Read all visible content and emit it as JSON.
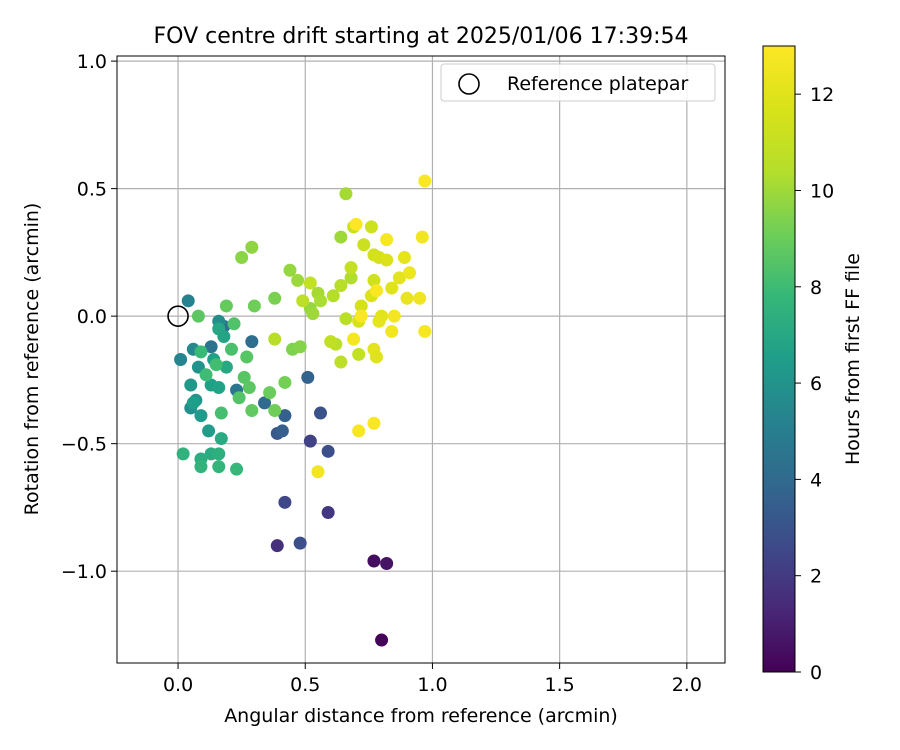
{
  "chart_data": {
    "type": "scatter",
    "title": "FOV centre drift starting at 2025/01/06 17:39:54",
    "xlabel": "Angular distance from reference (arcmin)",
    "ylabel": "Rotation from reference (arcmin)",
    "xlim": [
      -0.24,
      2.15
    ],
    "ylim": [
      -1.36,
      1.02
    ],
    "xticks": [
      0.0,
      0.5,
      1.0,
      1.5,
      2.0
    ],
    "xtick_labels": [
      "0.0",
      "0.5",
      "1.0",
      "1.5",
      "2.0"
    ],
    "yticks": [
      1.0,
      0.5,
      0.0,
      -0.5,
      -1.0
    ],
    "ytick_labels": [
      "1.0",
      "0.5",
      "0.0",
      "−0.5",
      "−1.0"
    ],
    "grid": true,
    "legend": {
      "placement": "top-right",
      "entries": [
        "Reference platepar"
      ]
    },
    "reference_point": {
      "x": 0.0,
      "y": 0.0
    },
    "colorbar": {
      "label": "Hours from first FF file",
      "range": [
        0,
        13
      ],
      "ticks": [
        0,
        2,
        4,
        6,
        8,
        10,
        12
      ],
      "tick_labels": [
        "0",
        "2",
        "4",
        "6",
        "8",
        "10",
        "12"
      ],
      "colormap": "viridis"
    },
    "points": [
      {
        "x": 0.8,
        "y": -1.27,
        "h": 0.1
      },
      {
        "x": 0.77,
        "y": -0.96,
        "h": 0.4
      },
      {
        "x": 0.82,
        "y": -0.97,
        "h": 0.6
      },
      {
        "x": 0.39,
        "y": -0.9,
        "h": 1.6
      },
      {
        "x": 0.48,
        "y": -0.89,
        "h": 2.8
      },
      {
        "x": 0.42,
        "y": -0.73,
        "h": 2.5
      },
      {
        "x": 0.59,
        "y": -0.77,
        "h": 1.9
      },
      {
        "x": 0.52,
        "y": -0.49,
        "h": 2.3
      },
      {
        "x": 0.59,
        "y": -0.53,
        "h": 2.8
      },
      {
        "x": 0.56,
        "y": -0.38,
        "h": 2.9
      },
      {
        "x": 0.39,
        "y": -0.46,
        "h": 3.2
      },
      {
        "x": 0.41,
        "y": -0.45,
        "h": 3.5
      },
      {
        "x": 0.42,
        "y": -0.39,
        "h": 3.6
      },
      {
        "x": 0.51,
        "y": -0.24,
        "h": 3.7
      },
      {
        "x": 0.34,
        "y": -0.34,
        "h": 4.0
      },
      {
        "x": 0.29,
        "y": -0.1,
        "h": 4.2
      },
      {
        "x": 0.23,
        "y": -0.29,
        "h": 4.6
      },
      {
        "x": 0.18,
        "y": -0.04,
        "h": 4.4
      },
      {
        "x": 0.13,
        "y": -0.12,
        "h": 4.5
      },
      {
        "x": 0.04,
        "y": 0.06,
        "h": 5.2
      },
      {
        "x": 0.01,
        "y": -0.17,
        "h": 5.3
      },
      {
        "x": 0.06,
        "y": -0.13,
        "h": 5.5
      },
      {
        "x": 0.16,
        "y": -0.02,
        "h": 5.7
      },
      {
        "x": 0.05,
        "y": -0.36,
        "h": 5.8
      },
      {
        "x": 0.05,
        "y": -0.27,
        "h": 6.2
      },
      {
        "x": 0.08,
        "y": -0.2,
        "h": 6.0
      },
      {
        "x": 0.07,
        "y": -0.33,
        "h": 6.1
      },
      {
        "x": 0.09,
        "y": -0.39,
        "h": 6.3
      },
      {
        "x": 0.06,
        "y": -0.34,
        "h": 6.5
      },
      {
        "x": 0.12,
        "y": -0.45,
        "h": 6.4
      },
      {
        "x": 0.13,
        "y": -0.27,
        "h": 6.6
      },
      {
        "x": 0.16,
        "y": -0.28,
        "h": 6.7
      },
      {
        "x": 0.14,
        "y": -0.17,
        "h": 6.6
      },
      {
        "x": 0.16,
        "y": -0.05,
        "h": 6.9
      },
      {
        "x": 0.18,
        "y": -0.08,
        "h": 6.8
      },
      {
        "x": 0.19,
        "y": -0.2,
        "h": 7.0
      },
      {
        "x": 0.17,
        "y": -0.48,
        "h": 7.1
      },
      {
        "x": 0.13,
        "y": -0.54,
        "h": 7.2
      },
      {
        "x": 0.09,
        "y": -0.56,
        "h": 7.3
      },
      {
        "x": 0.16,
        "y": -0.54,
        "h": 7.4
      },
      {
        "x": 0.02,
        "y": -0.54,
        "h": 7.5
      },
      {
        "x": 0.09,
        "y": -0.59,
        "h": 7.6
      },
      {
        "x": 0.16,
        "y": -0.59,
        "h": 7.7
      },
      {
        "x": 0.23,
        "y": -0.6,
        "h": 7.8
      },
      {
        "x": 0.09,
        "y": -0.14,
        "h": 7.9
      },
      {
        "x": 0.11,
        "y": -0.23,
        "h": 8.0
      },
      {
        "x": 0.15,
        "y": -0.19,
        "h": 8.1
      },
      {
        "x": 0.17,
        "y": -0.38,
        "h": 8.2
      },
      {
        "x": 0.21,
        "y": -0.13,
        "h": 8.3
      },
      {
        "x": 0.22,
        "y": -0.03,
        "h": 8.4
      },
      {
        "x": 0.24,
        "y": -0.32,
        "h": 8.5
      },
      {
        "x": 0.26,
        "y": -0.24,
        "h": 8.6
      },
      {
        "x": 0.27,
        "y": -0.16,
        "h": 8.6
      },
      {
        "x": 0.28,
        "y": -0.28,
        "h": 8.7
      },
      {
        "x": 0.29,
        "y": -0.37,
        "h": 8.8
      },
      {
        "x": 0.08,
        "y": 0.0,
        "h": 8.7
      },
      {
        "x": 0.19,
        "y": 0.04,
        "h": 8.9
      },
      {
        "x": 0.3,
        "y": 0.04,
        "h": 9.1
      },
      {
        "x": 0.36,
        "y": -0.3,
        "h": 9.0
      },
      {
        "x": 0.38,
        "y": -0.37,
        "h": 9.1
      },
      {
        "x": 0.42,
        "y": -0.26,
        "h": 9.2
      },
      {
        "x": 0.38,
        "y": 0.07,
        "h": 9.3
      },
      {
        "x": 0.45,
        "y": -0.13,
        "h": 9.4
      },
      {
        "x": 0.48,
        "y": -0.12,
        "h": 9.5
      },
      {
        "x": 0.25,
        "y": 0.23,
        "h": 9.6
      },
      {
        "x": 0.29,
        "y": 0.27,
        "h": 9.7
      },
      {
        "x": 0.44,
        "y": 0.18,
        "h": 9.8
      },
      {
        "x": 0.47,
        "y": 0.14,
        "h": 9.9
      },
      {
        "x": 0.52,
        "y": 0.03,
        "h": 9.8
      },
      {
        "x": 0.53,
        "y": 0.01,
        "h": 10.0
      },
      {
        "x": 0.55,
        "y": 0.09,
        "h": 10.1
      },
      {
        "x": 0.56,
        "y": 0.06,
        "h": 10.2
      },
      {
        "x": 0.64,
        "y": 0.31,
        "h": 10.0
      },
      {
        "x": 0.66,
        "y": 0.48,
        "h": 10.1
      },
      {
        "x": 0.68,
        "y": 0.15,
        "h": 10.3
      },
      {
        "x": 0.61,
        "y": 0.08,
        "h": 10.4
      },
      {
        "x": 0.64,
        "y": 0.12,
        "h": 10.5
      },
      {
        "x": 0.66,
        "y": -0.01,
        "h": 10.6
      },
      {
        "x": 0.62,
        "y": -0.11,
        "h": 10.6
      },
      {
        "x": 0.64,
        "y": -0.18,
        "h": 10.7
      },
      {
        "x": 0.6,
        "y": -0.1,
        "h": 10.8
      },
      {
        "x": 0.71,
        "y": -0.15,
        "h": 10.9
      },
      {
        "x": 0.38,
        "y": -0.09,
        "h": 10.5
      },
      {
        "x": 0.49,
        "y": 0.06,
        "h": 10.7
      },
      {
        "x": 0.52,
        "y": 0.13,
        "h": 10.9
      },
      {
        "x": 0.68,
        "y": 0.19,
        "h": 11.0
      },
      {
        "x": 0.69,
        "y": 0.35,
        "h": 11.1
      },
      {
        "x": 0.73,
        "y": 0.28,
        "h": 11.2
      },
      {
        "x": 0.76,
        "y": 0.35,
        "h": 11.3
      },
      {
        "x": 0.77,
        "y": 0.14,
        "h": 11.4
      },
      {
        "x": 0.77,
        "y": 0.24,
        "h": 11.5
      },
      {
        "x": 0.72,
        "y": 0.04,
        "h": 11.6
      },
      {
        "x": 0.71,
        "y": -0.02,
        "h": 11.7
      },
      {
        "x": 0.76,
        "y": 0.08,
        "h": 11.8
      },
      {
        "x": 0.8,
        "y": 0.0,
        "h": 12.0
      },
      {
        "x": 0.77,
        "y": -0.13,
        "h": 12.1
      },
      {
        "x": 0.78,
        "y": -0.16,
        "h": 11.9
      },
      {
        "x": 0.79,
        "y": -0.02,
        "h": 12.2
      },
      {
        "x": 0.79,
        "y": 0.23,
        "h": 11.6
      },
      {
        "x": 0.82,
        "y": 0.22,
        "h": 11.8
      },
      {
        "x": 0.84,
        "y": 0.11,
        "h": 11.9
      },
      {
        "x": 0.87,
        "y": 0.15,
        "h": 12.1
      },
      {
        "x": 0.89,
        "y": 0.23,
        "h": 12.2
      },
      {
        "x": 0.9,
        "y": 0.07,
        "h": 12.3
      },
      {
        "x": 0.91,
        "y": 0.17,
        "h": 12.4
      },
      {
        "x": 0.95,
        "y": 0.07,
        "h": 12.5
      },
      {
        "x": 0.96,
        "y": 0.31,
        "h": 12.6
      },
      {
        "x": 0.97,
        "y": 0.53,
        "h": 12.9
      },
      {
        "x": 0.97,
        "y": -0.06,
        "h": 12.8
      },
      {
        "x": 0.85,
        "y": 0.0,
        "h": 12.7
      },
      {
        "x": 0.84,
        "y": -0.06,
        "h": 12.6
      },
      {
        "x": 0.82,
        "y": 0.3,
        "h": 12.8
      },
      {
        "x": 0.78,
        "y": 0.1,
        "h": 12.9
      },
      {
        "x": 0.7,
        "y": 0.36,
        "h": 13.0
      },
      {
        "x": 0.72,
        "y": 0.0,
        "h": 12.9
      },
      {
        "x": 0.69,
        "y": -0.09,
        "h": 12.7
      },
      {
        "x": 0.71,
        "y": -0.45,
        "h": 12.8
      },
      {
        "x": 0.77,
        "y": -0.42,
        "h": 12.9
      },
      {
        "x": 0.55,
        "y": -0.61,
        "h": 12.6
      }
    ]
  }
}
